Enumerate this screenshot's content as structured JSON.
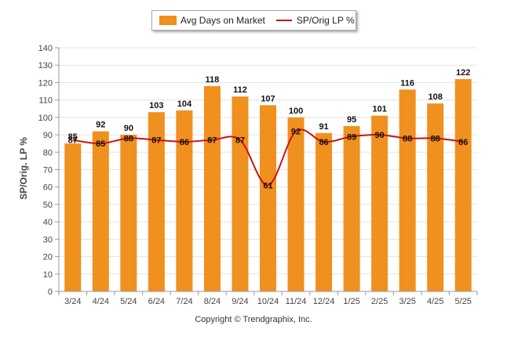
{
  "legend": {
    "bar_label": "Avg Days on Market",
    "line_label": "SP/Orig LP %"
  },
  "footer": {
    "copyright": "Copyright © Trendgraphix, Inc."
  },
  "chart_data": {
    "type": "bar",
    "title": "",
    "xlabel": "",
    "ylabel": "SP/Orig. LP %",
    "ylim": [
      0,
      140
    ],
    "ytick_step": 10,
    "grid": true,
    "legend_position": "top-center",
    "categories": [
      "3/24",
      "4/24",
      "5/24",
      "6/24",
      "7/24",
      "8/24",
      "9/24",
      "10/24",
      "11/24",
      "12/24",
      "1/25",
      "2/25",
      "3/25",
      "4/25",
      "5/25"
    ],
    "series": [
      {
        "name": "Avg Days on Market",
        "type": "bar",
        "color": "#f0901e",
        "values": [
          85,
          92,
          90,
          103,
          104,
          118,
          112,
          107,
          100,
          91,
          95,
          101,
          116,
          108,
          122
        ]
      },
      {
        "name": "SP/Orig LP %",
        "type": "line",
        "color": "#cc1111",
        "values": [
          87,
          85,
          88,
          87,
          86,
          87,
          87,
          61,
          92,
          86,
          89,
          90,
          88,
          88,
          86
        ]
      }
    ]
  }
}
